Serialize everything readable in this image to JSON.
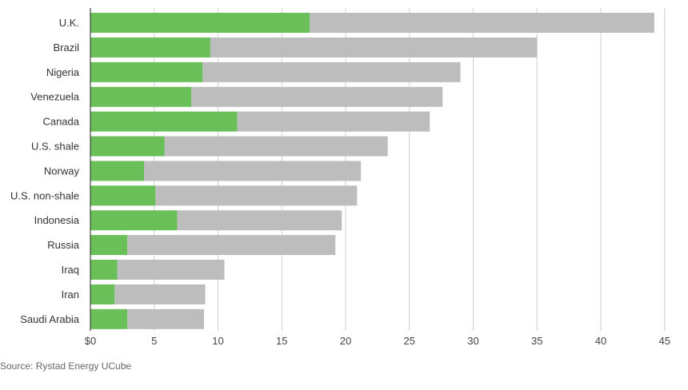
{
  "chart_data": {
    "type": "bar",
    "orientation": "horizontal",
    "stacked": true,
    "categories": [
      "U.K.",
      "Brazil",
      "Nigeria",
      "Venezuela",
      "Canada",
      "U.S. shale",
      "Norway",
      "U.S. non-shale",
      "Indonesia",
      "Russia",
      "Iraq",
      "Iran",
      "Saudi Arabia"
    ],
    "series": [
      {
        "color": "#6abf59",
        "values": [
          17.2,
          9.4,
          8.8,
          7.9,
          11.5,
          5.8,
          4.2,
          5.1,
          6.8,
          2.9,
          2.1,
          1.9,
          2.9
        ]
      },
      {
        "color": "#bdbdbd",
        "values": [
          27.0,
          25.6,
          20.2,
          19.7,
          15.1,
          17.5,
          17.0,
          15.8,
          12.9,
          16.3,
          8.4,
          7.1,
          6.0
        ]
      }
    ],
    "totals": [
      44.2,
      35.0,
      29.0,
      27.6,
      26.6,
      23.3,
      21.2,
      20.9,
      19.7,
      19.2,
      10.5,
      9.0,
      8.9
    ],
    "xticks": [
      "$0",
      "5",
      "10",
      "15",
      "20",
      "25",
      "30",
      "35",
      "40",
      "45"
    ],
    "xlim": [
      0,
      45
    ],
    "grid": "vertical",
    "legend": "none"
  },
  "source": "Source: Rystad Energy UCube"
}
